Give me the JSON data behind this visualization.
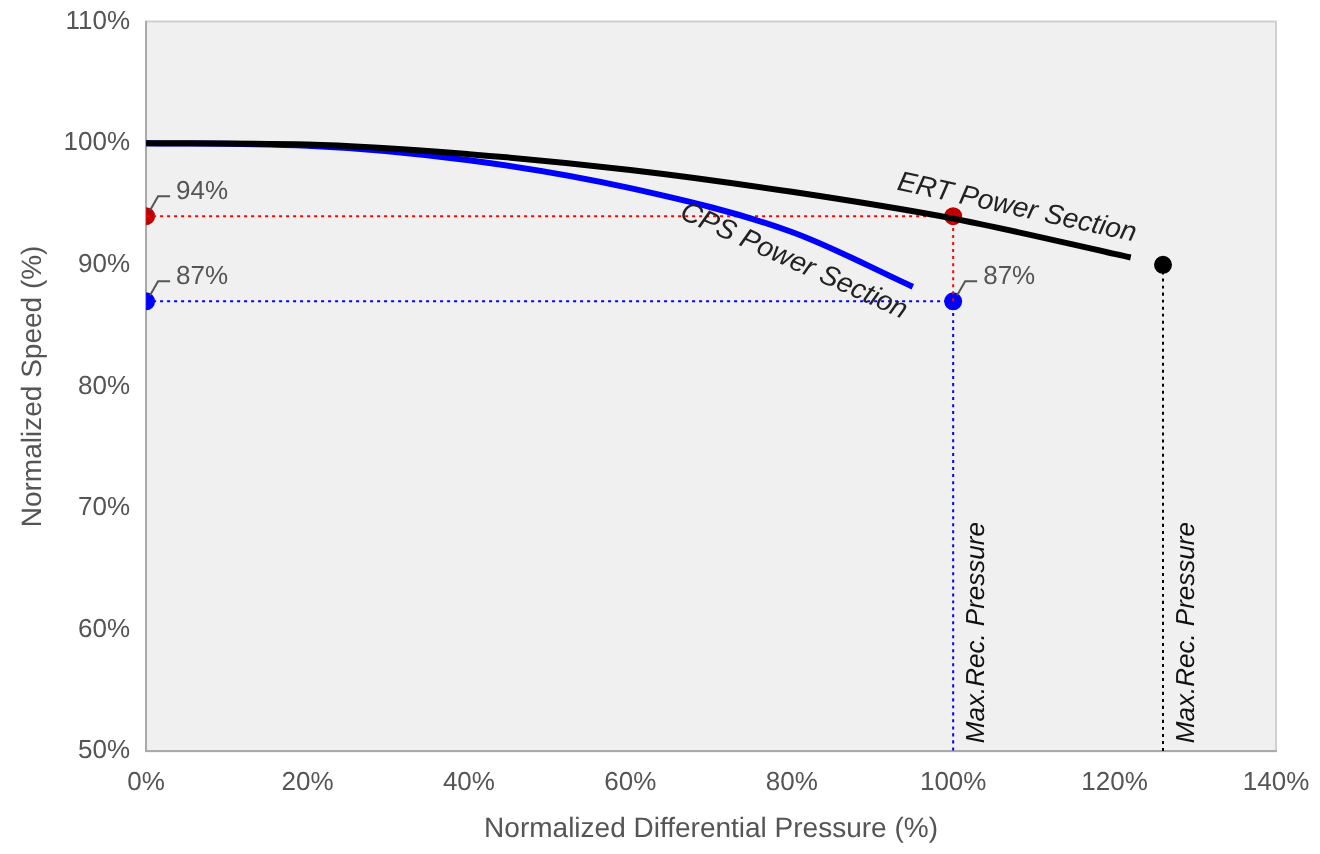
{
  "chart_data": {
    "type": "line",
    "xlabel": "Normalized Differential Pressure (%)",
    "ylabel": "Normalized Speed (%)",
    "xlim": [
      0,
      140
    ],
    "xticks": [
      {
        "value": 0,
        "label": "0%"
      },
      {
        "value": 20,
        "label": "20%"
      },
      {
        "value": 40,
        "label": "40%"
      },
      {
        "value": 60,
        "label": "60%"
      },
      {
        "value": 80,
        "label": "80%"
      },
      {
        "value": 100,
        "label": "100%"
      },
      {
        "value": 120,
        "label": "120%"
      },
      {
        "value": 140,
        "label": "140%"
      }
    ],
    "ylim": [
      50,
      110
    ],
    "yticks": [
      {
        "value": 50,
        "label": "50%"
      },
      {
        "value": 60,
        "label": "60%"
      },
      {
        "value": 70,
        "label": "70%"
      },
      {
        "value": 80,
        "label": "80%"
      },
      {
        "value": 90,
        "label": "90%"
      },
      {
        "value": 100,
        "label": "100%"
      },
      {
        "value": 110,
        "label": "110%"
      }
    ],
    "grid": false,
    "legend": false,
    "series": [
      {
        "name": "ERT Power Section",
        "type": "line",
        "color": "#000000",
        "x": [
          0,
          20,
          40,
          60,
          80,
          100,
          122
        ],
        "values": [
          100,
          99.9,
          99.1,
          97.8,
          96,
          93.8,
          90.6
        ]
      },
      {
        "name": "CPS Power Section",
        "type": "line",
        "color": "#0000ff",
        "x": [
          0,
          20,
          40,
          60,
          80,
          95
        ],
        "values": [
          100,
          99.8,
          98.6,
          96.3,
          92.7,
          88.2
        ]
      },
      {
        "type": "line",
        "color": "#ff0000",
        "line_style": "dotted",
        "x": [
          0,
          100,
          100
        ],
        "values": [
          94,
          94,
          87
        ]
      },
      {
        "type": "line",
        "color": "#0000ff",
        "line_style": "dotted",
        "x": [
          0,
          100,
          100
        ],
        "values": [
          87,
          87,
          50
        ]
      },
      {
        "type": "line",
        "color": "#000000",
        "line_style": "dotted",
        "x": [
          126,
          126
        ],
        "values": [
          90,
          50
        ]
      },
      {
        "type": "scatter",
        "color": "#c00000",
        "marker": "circle",
        "x": [
          0,
          100
        ],
        "values": [
          94,
          94
        ],
        "value_labels": [
          "94%",
          null
        ]
      },
      {
        "type": "scatter",
        "color": "#0000ff",
        "marker": "circle",
        "x": [
          0,
          100
        ],
        "values": [
          87,
          87
        ],
        "value_labels": [
          "87%",
          "87%"
        ]
      },
      {
        "type": "scatter",
        "color": "#000000",
        "marker": "circle",
        "x": [
          126
        ],
        "values": [
          90
        ]
      }
    ],
    "annotations": [
      {
        "text": "Max.Rec. Pressure",
        "x": 100,
        "y": 50
      },
      {
        "text": "Max.Rec. Pressure",
        "x": 126,
        "y": 50
      }
    ]
  }
}
